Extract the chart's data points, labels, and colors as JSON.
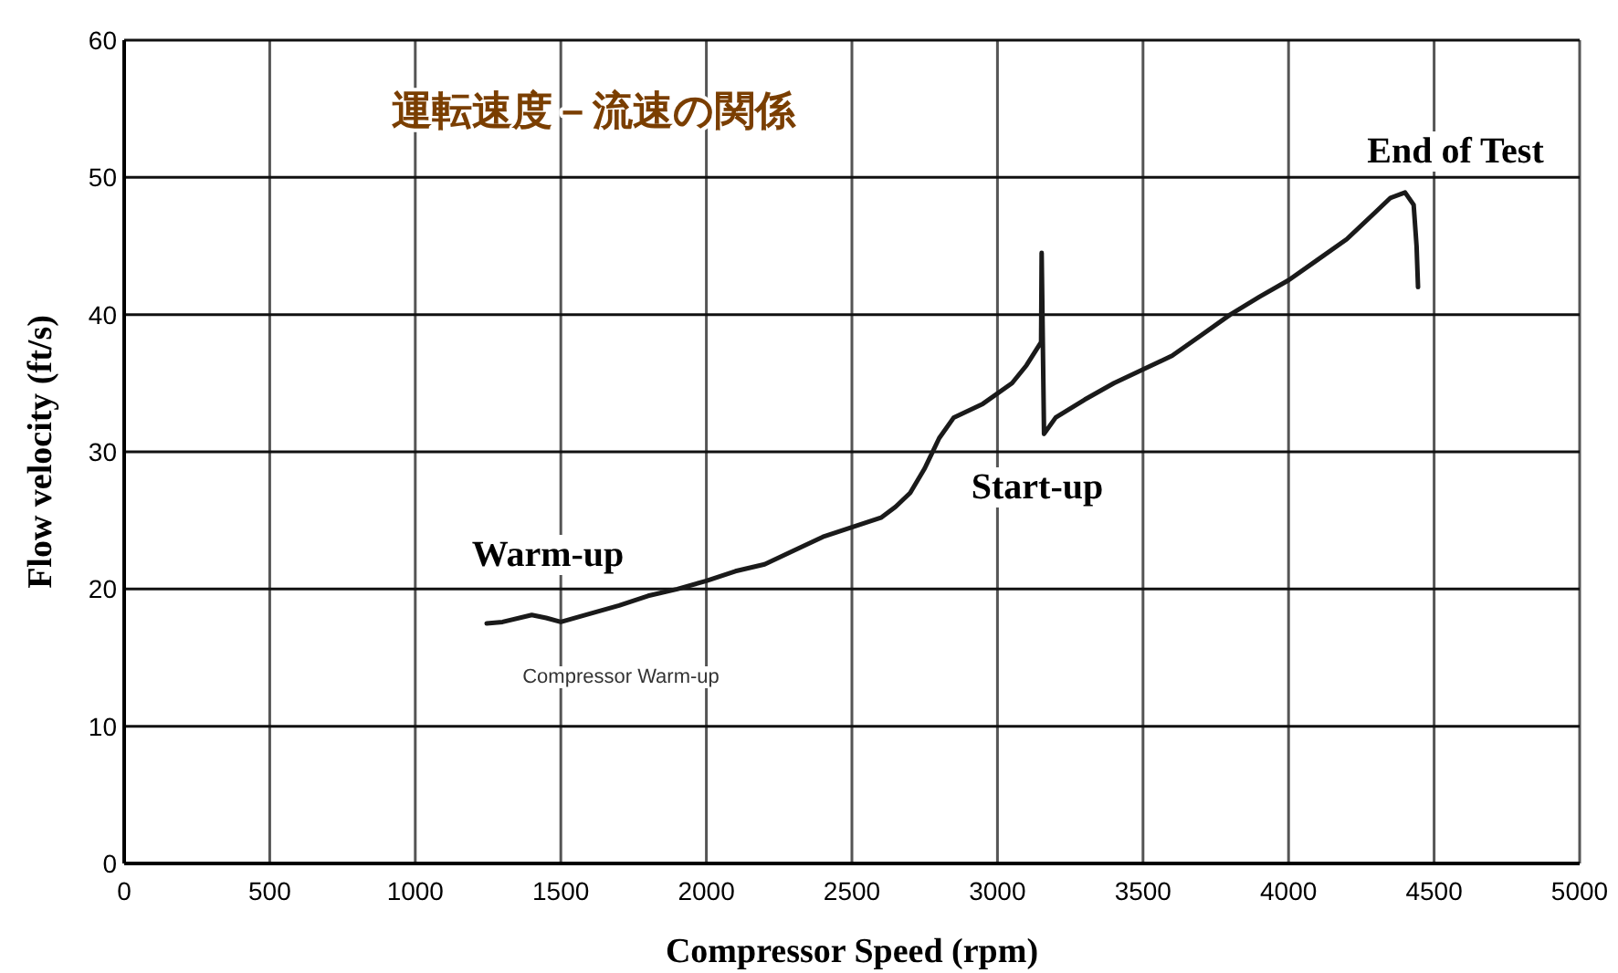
{
  "chart_data": {
    "type": "line",
    "title": "運転速度－流速の関係",
    "xlabel": "Compressor Speed (rpm)",
    "ylabel": "Flow velocity (ft/s)",
    "xlim": [
      0,
      5000
    ],
    "ylim": [
      0,
      60
    ],
    "xticks": [
      0,
      500,
      1000,
      1500,
      2000,
      2500,
      3000,
      3500,
      4000,
      4500,
      5000
    ],
    "yticks": [
      0,
      10,
      20,
      30,
      40,
      50,
      60
    ],
    "grid": true,
    "marker": "none",
    "line_style": "solid",
    "annotations": [
      "Warm-up",
      "Start-up",
      "End of Test",
      "Compressor Warm-up"
    ],
    "series": [
      {
        "color": "#1a1a1a",
        "x": [
          1245,
          1300,
          1400,
          1450,
          1500,
          1600,
          1700,
          1800,
          1900,
          2000,
          2100,
          2200,
          2300,
          2400,
          2500,
          2600,
          2650,
          2700,
          2750,
          2800,
          2850,
          2950,
          3050,
          3100,
          3150,
          3152,
          3160,
          3200,
          3300,
          3400,
          3500,
          3600,
          3700,
          3800,
          3900,
          4000,
          4100,
          4200,
          4300,
          4350,
          4400,
          4430,
          4440,
          4445
        ],
        "values": [
          17.5,
          17.6,
          18.1,
          17.9,
          17.6,
          18.2,
          18.8,
          19.5,
          20.0,
          20.6,
          21.3,
          21.8,
          22.8,
          23.8,
          24.5,
          25.2,
          26.0,
          27.0,
          28.8,
          31.0,
          32.5,
          33.5,
          35.0,
          36.3,
          38.0,
          44.5,
          31.3,
          32.5,
          33.8,
          35.0,
          36.0,
          37.0,
          38.5,
          40.0,
          41.3,
          42.5,
          44.0,
          45.5,
          47.5,
          48.5,
          48.9,
          48.0,
          45.0,
          42.0
        ]
      }
    ]
  }
}
